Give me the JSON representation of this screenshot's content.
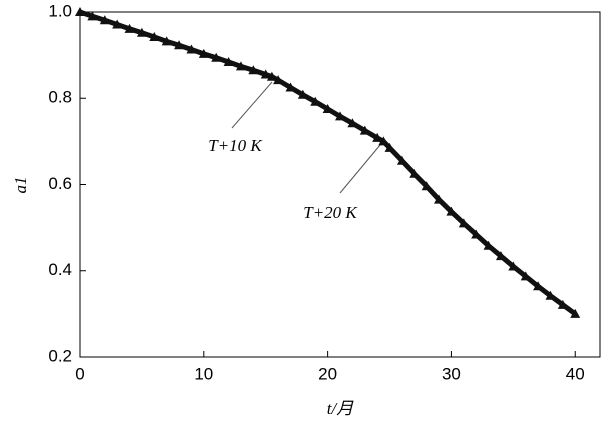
{
  "chart_data": {
    "type": "line",
    "x_label": "t/月",
    "y_label": "a1",
    "annotations": [
      "T+10 K",
      "T+20 K"
    ],
    "x": [
      0,
      1,
      2,
      3,
      4,
      5,
      6,
      7,
      8,
      9,
      10,
      11,
      12,
      13,
      14,
      15,
      15.5,
      16,
      17,
      18,
      19,
      20,
      21,
      22,
      23,
      24,
      24.5,
      25,
      26,
      27,
      28,
      29,
      30,
      31,
      32,
      33,
      34,
      35,
      36,
      37,
      38,
      39,
      40
    ],
    "series": [
      {
        "color": "#111111",
        "values": [
          1.0,
          0.99,
          0.981,
          0.971,
          0.961,
          0.952,
          0.942,
          0.932,
          0.923,
          0.913,
          0.903,
          0.894,
          0.884,
          0.874,
          0.865,
          0.855,
          0.85,
          0.842,
          0.825,
          0.808,
          0.792,
          0.775,
          0.758,
          0.742,
          0.725,
          0.708,
          0.7,
          0.685,
          0.655,
          0.625,
          0.596,
          0.565,
          0.537,
          0.51,
          0.484,
          0.458,
          0.434,
          0.41,
          0.387,
          0.364,
          0.342,
          0.321,
          0.3
        ]
      }
    ],
    "xlim": [
      0,
      42
    ],
    "ylim": [
      0.2,
      1.0
    ],
    "xticks": [
      0,
      10,
      20,
      30,
      40
    ],
    "yticks": [
      0.2,
      0.4,
      0.6,
      0.8,
      {
        "value": 1,
        "label": "1.0"
      }
    ]
  }
}
